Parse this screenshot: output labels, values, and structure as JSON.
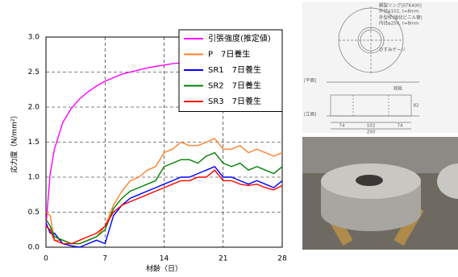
{
  "chart_data": {
    "type": "line",
    "x_label": "材齢（日）",
    "y_label": "応力度（N/mm²）",
    "x": [
      0,
      0.5,
      1,
      2,
      3,
      4,
      5,
      6,
      7,
      8,
      9,
      10,
      11,
      12,
      13,
      14,
      15,
      16,
      17,
      18,
      19,
      20,
      21,
      22,
      23,
      24,
      25,
      26,
      27,
      28
    ],
    "series": [
      {
        "name": "引張強度(推定値)",
        "color": "#ff00ff",
        "values": [
          0.3,
          1.05,
          1.4,
          1.78,
          1.98,
          2.12,
          2.22,
          2.3,
          2.37,
          2.42,
          2.47,
          2.5,
          2.53,
          2.56,
          2.58,
          2.6,
          2.62,
          2.63,
          2.65,
          2.66,
          2.67,
          2.68,
          2.69,
          2.7,
          2.71,
          2.72,
          2.72,
          2.73,
          2.74,
          2.74
        ]
      },
      {
        "name": "P　7日養生",
        "color": "#ff7f27",
        "values": [
          0.5,
          0.45,
          0.1,
          0.1,
          0.05,
          0.05,
          0.1,
          0.15,
          0.3,
          0.6,
          0.8,
          0.95,
          1.0,
          1.1,
          1.15,
          1.35,
          1.4,
          1.5,
          1.45,
          1.45,
          1.5,
          1.55,
          1.4,
          1.4,
          1.45,
          1.35,
          1.4,
          1.35,
          1.3,
          1.35
        ]
      },
      {
        "name": "SR1　7日養生",
        "color": "#0000ff",
        "values": [
          0.35,
          0.2,
          0.2,
          0.05,
          0.02,
          0.0,
          0.05,
          0.1,
          0.05,
          0.45,
          0.6,
          0.7,
          0.75,
          0.8,
          0.85,
          0.9,
          0.95,
          1.0,
          1.0,
          1.05,
          1.1,
          1.15,
          1.0,
          1.0,
          0.95,
          0.9,
          0.95,
          0.9,
          0.85,
          0.95
        ]
      },
      {
        "name": "SR2　7日養生",
        "color": "#008000",
        "values": [
          0.4,
          0.3,
          0.15,
          0.1,
          0.05,
          0.05,
          0.1,
          0.15,
          0.25,
          0.55,
          0.7,
          0.8,
          0.85,
          0.9,
          0.95,
          1.15,
          1.2,
          1.25,
          1.25,
          1.2,
          1.3,
          1.35,
          1.2,
          1.15,
          1.2,
          1.1,
          1.15,
          1.1,
          1.05,
          1.15
        ]
      },
      {
        "name": "SR3　7日養生",
        "color": "#ff0000",
        "values": [
          0.3,
          0.25,
          0.1,
          0.05,
          0.05,
          0.1,
          0.15,
          0.2,
          0.3,
          0.5,
          0.6,
          0.65,
          0.7,
          0.75,
          0.8,
          0.85,
          0.9,
          0.95,
          0.95,
          1.0,
          1.0,
          1.1,
          0.95,
          0.95,
          0.9,
          0.88,
          0.9,
          0.85,
          0.82,
          0.88
        ]
      }
    ],
    "xlim": [
      0,
      28
    ],
    "xticks": [
      0,
      7,
      14,
      21,
      28
    ],
    "ylim": [
      0,
      3
    ],
    "yticks": [
      {
        "value": 0,
        "label": "0.0"
      },
      0.5,
      {
        "value": 1,
        "label": "1.0"
      },
      1.5,
      {
        "value": 2,
        "label": "2.0"
      },
      2.5,
      {
        "value": 3,
        "label": "3.0"
      }
    ],
    "grid": true,
    "legend": "upper right"
  },
  "diagram": {
    "labels": [
      "鋼製リング[STK400]",
      "外径φ102, t=8mm",
      "外型枠(塩化ビニル管)",
      "内径φ250, t=8mm",
      "ひずみゲージ",
      "[平面]",
      "[立面]",
      "底板",
      "74",
      "102",
      "74",
      "250",
      "82"
    ]
  }
}
